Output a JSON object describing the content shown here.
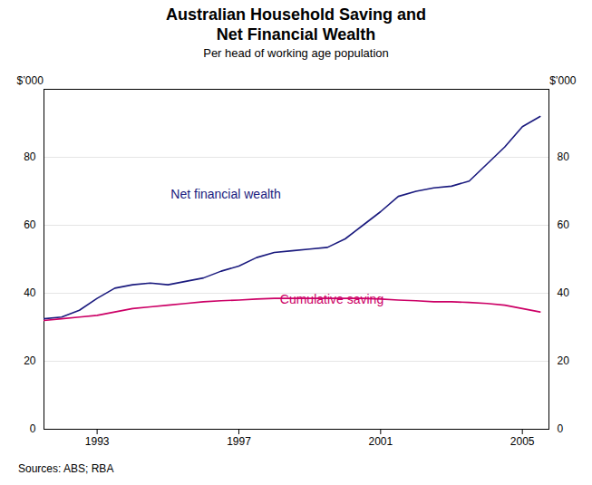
{
  "chart_data": {
    "type": "line",
    "title": "Australian Household Saving and\nNet Financial Wealth",
    "subtitle": "Per head of working age population",
    "source": "Sources: ABS; RBA",
    "ylabel": "$’000",
    "y2label": "$’000",
    "x": [
      1991.5,
      1992.0,
      1992.5,
      1993.0,
      1993.5,
      1994.0,
      1994.5,
      1995.0,
      1995.5,
      1996.0,
      1996.5,
      1997.0,
      1997.5,
      1998.0,
      1998.5,
      1999.0,
      1999.5,
      2000.0,
      2000.5,
      2001.0,
      2001.5,
      2002.0,
      2002.5,
      2003.0,
      2003.5,
      2004.0,
      2004.5,
      2005.0,
      2005.5
    ],
    "series": [
      {
        "name": "Net financial wealth",
        "color": "#1a1a7e",
        "values": [
          32.5,
          33.0,
          35.0,
          38.5,
          41.5,
          42.5,
          43.0,
          42.5,
          43.5,
          44.5,
          46.5,
          48.0,
          50.5,
          52.0,
          52.5,
          53.0,
          53.5,
          56.0,
          60.0,
          64.0,
          68.5,
          70.0,
          71.0,
          71.5,
          73.0,
          78.0,
          83.0,
          89.0,
          92.0
        ]
      },
      {
        "name": "Cumulative saving",
        "color": "#cc0066",
        "values": [
          32.0,
          32.5,
          33.0,
          33.5,
          34.5,
          35.5,
          36.0,
          36.5,
          37.0,
          37.5,
          37.8,
          38.0,
          38.3,
          38.5,
          38.5,
          38.5,
          38.5,
          38.5,
          38.5,
          38.3,
          38.0,
          37.8,
          37.5,
          37.5,
          37.3,
          37.0,
          36.5,
          35.5,
          34.5
        ]
      }
    ],
    "xlim": [
      1991.5,
      2005.75
    ],
    "xticks": [
      1993,
      1997,
      2001,
      2005
    ],
    "ylim": [
      0,
      100
    ],
    "yticks": [
      0,
      20,
      40,
      60,
      80
    ],
    "y2lim": [
      0,
      100
    ],
    "y2ticks": [
      0,
      20,
      40,
      60,
      80
    ],
    "grid": true
  }
}
